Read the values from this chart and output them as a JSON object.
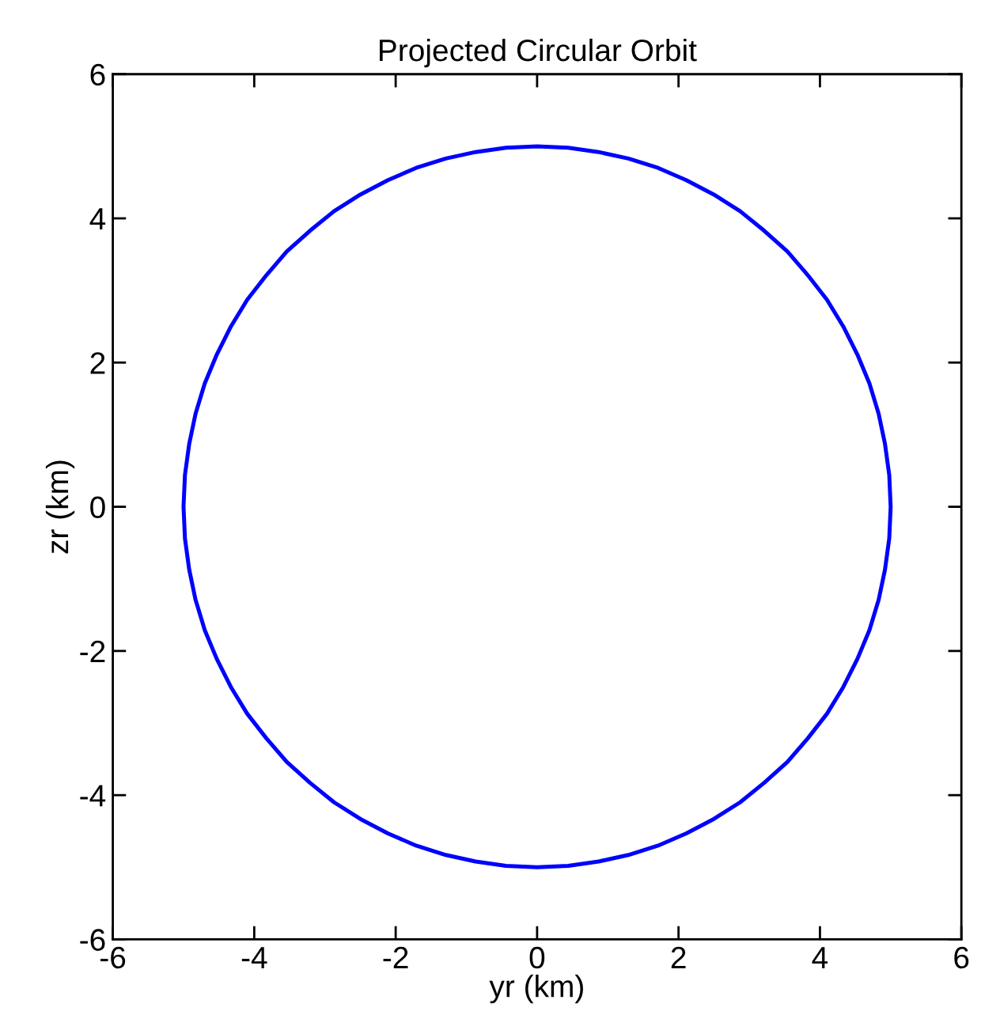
{
  "chart_data": {
    "type": "line",
    "title": "Projected Circular Orbit",
    "xlabel": "yr (km)",
    "ylabel": "zr (km)",
    "xlim": [
      -6,
      6
    ],
    "ylim": [
      -6,
      6
    ],
    "xticks": [
      -6,
      -4,
      -2,
      0,
      2,
      4,
      6
    ],
    "yticks": [
      -6,
      -4,
      -2,
      0,
      2,
      4,
      6
    ],
    "grid": false,
    "series": [
      {
        "color": "#0000ff",
        "x": [
          5,
          4.98,
          4.92,
          4.83,
          4.7,
          4.53,
          4.33,
          4.1,
          3.83,
          3.54,
          3.21,
          2.87,
          2.5,
          2.11,
          1.71,
          1.29,
          0.87,
          0.44,
          0,
          -0.44,
          -0.87,
          -1.29,
          -1.71,
          -2.11,
          -2.5,
          -2.87,
          -3.21,
          -3.54,
          -3.83,
          -4.1,
          -4.33,
          -4.53,
          -4.7,
          -4.83,
          -4.92,
          -4.98,
          -5,
          -4.98,
          -4.92,
          -4.83,
          -4.7,
          -4.53,
          -4.33,
          -4.1,
          -3.83,
          -3.54,
          -3.21,
          -2.87,
          -2.5,
          -2.11,
          -1.71,
          -1.29,
          -0.87,
          -0.44,
          0,
          0.44,
          0.87,
          1.29,
          1.71,
          2.11,
          2.5,
          2.87,
          3.21,
          3.54,
          3.83,
          4.1,
          4.33,
          4.53,
          4.7,
          4.83,
          4.92,
          4.98,
          5,
          4.98
        ],
        "values": [
          0,
          0.44,
          0.87,
          1.29,
          1.71,
          2.11,
          2.5,
          2.87,
          3.21,
          3.54,
          3.83,
          4.1,
          4.33,
          4.53,
          4.7,
          4.83,
          4.92,
          4.98,
          5,
          4.98,
          4.92,
          4.83,
          4.7,
          4.53,
          4.33,
          4.1,
          3.83,
          3.54,
          3.21,
          2.87,
          2.5,
          2.11,
          1.71,
          1.29,
          0.87,
          0.44,
          0,
          -0.44,
          -0.87,
          -1.29,
          -1.71,
          -2.11,
          -2.5,
          -2.87,
          -3.21,
          -3.54,
          -3.83,
          -4.1,
          -4.33,
          -4.53,
          -4.7,
          -4.83,
          -4.92,
          -4.98,
          -5,
          -4.98,
          -4.92,
          -4.83,
          -4.7,
          -4.53,
          -4.33,
          -4.1,
          -3.83,
          -3.54,
          -3.21,
          -2.87,
          -2.5,
          -2.11,
          -1.71,
          -1.29,
          -0.87,
          -0.44,
          0,
          0.44
        ]
      }
    ]
  }
}
